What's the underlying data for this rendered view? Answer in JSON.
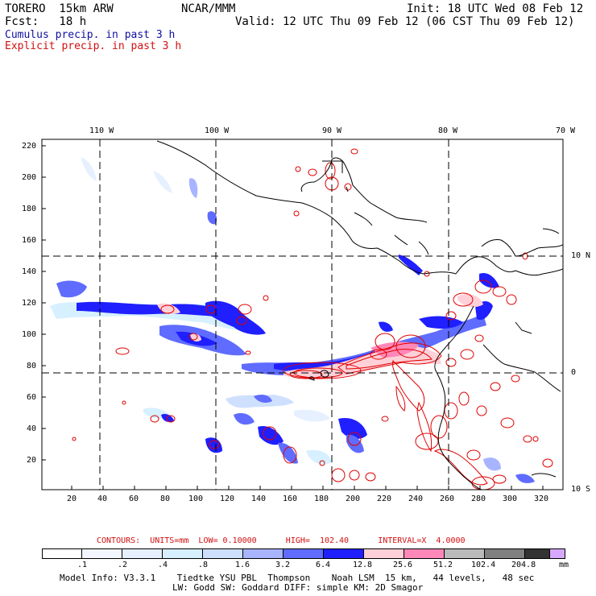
{
  "header": {
    "model": "TORERO  15km ARW",
    "org": "NCAR/MMM",
    "init": "Init: 18 UTC Wed 08 Feb 12",
    "fcst": "Fcst:   18 h",
    "valid": "Valid: 12 UTC Thu 09 Feb 12 (06 CST Thu 09 Feb 12)",
    "cumulus": "Cumulus precip. in past 3 h",
    "explicit": "Explicit precip. in past 3 h"
  },
  "map": {
    "lon_labels": [
      "110 W",
      "100 W",
      "90 W",
      "80 W",
      "70 W"
    ],
    "lat_labels": [
      "10 N",
      "0",
      "10 S"
    ],
    "y_ticks": [
      "220",
      "200",
      "180",
      "160",
      "140",
      "120",
      "100",
      "80",
      "60",
      "40",
      "20"
    ],
    "x_ticks": [
      "20",
      "40",
      "60",
      "80",
      "100",
      "120",
      "140",
      "160",
      "180",
      "200",
      "220",
      "240",
      "260",
      "280",
      "300",
      "320"
    ]
  },
  "legend": {
    "contours": "CONTOURS:  UNITS=mm  LOW= 0.10000      HIGH=  102.40      INTERVAL=X  4.0000",
    "values": [
      ".1",
      ".2",
      ".4",
      ".8",
      "1.6",
      "3.2",
      "6.4",
      "12.8",
      "25.6",
      "51.2",
      "102.4",
      "204.8"
    ],
    "unit": "mm",
    "colors": [
      "#ffffff",
      "#f3f6ff",
      "#e6f0ff",
      "#d6f0ff",
      "#cfe0ff",
      "#a8b4ff",
      "#5f6cff",
      "#1f1fff",
      "#ffd0d8",
      "#ff88b8",
      "#bbbbbb",
      "#808080",
      "#333333",
      "#d8a8ff"
    ]
  },
  "footer": {
    "line1": "Model Info: V3.3.1    Tiedtke YSU PBL  Thompson    Noah LSM  15 km,   44 levels,   48 sec",
    "line2": "LW: Godd SW: Goddard DIFF: simple KM: 2D Smagor"
  },
  "colors": {
    "cumulus_text": "#1010a0",
    "explicit_text": "#d01010",
    "contour": "#e00000"
  }
}
